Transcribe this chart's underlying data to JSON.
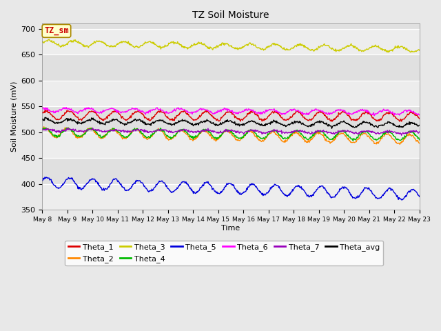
{
  "title": "TZ Soil Moisture",
  "xlabel": "Time",
  "ylabel": "Soil Moisture (mV)",
  "ylim": [
    350,
    710
  ],
  "yticks": [
    350,
    400,
    450,
    500,
    550,
    600,
    650,
    700
  ],
  "background_color": "#e8e8e8",
  "plot_bg_color": "#e0e0e0",
  "series": [
    {
      "name": "Theta_1",
      "color": "#dd0000",
      "base": 533,
      "trend": -0.18,
      "amp": 8,
      "freq": 1.1,
      "phase": 0.5,
      "seed": 1
    },
    {
      "name": "Theta_2",
      "color": "#ff8800",
      "base": 500,
      "trend": -0.9,
      "amp": 9,
      "freq": 1.1,
      "phase": 1.0,
      "seed": 2
    },
    {
      "name": "Theta_3",
      "color": "#cccc00",
      "base": 673,
      "trend": -0.85,
      "amp": 5,
      "freq": 1.0,
      "phase": 0.0,
      "seed": 3
    },
    {
      "name": "Theta_4",
      "color": "#00bb00",
      "base": 500,
      "trend": -0.5,
      "amp": 8,
      "freq": 1.1,
      "phase": 0.8,
      "seed": 4
    },
    {
      "name": "Theta_5",
      "color": "#0000dd",
      "base": 403,
      "trend": -1.6,
      "amp": 10,
      "freq": 1.1,
      "phase": 0.3,
      "seed": 5
    },
    {
      "name": "Theta_6",
      "color": "#ff00ff",
      "base": 543,
      "trend": -0.3,
      "amp": 4,
      "freq": 1.1,
      "phase": 1.5,
      "seed": 6
    },
    {
      "name": "Theta_7",
      "color": "#9900bb",
      "base": 504,
      "trend": -0.3,
      "amp": 2,
      "freq": 1.1,
      "phase": 0.2,
      "seed": 7
    },
    {
      "name": "Theta_avg",
      "color": "#000000",
      "base": 522,
      "trend": -0.55,
      "amp": 4,
      "freq": 1.1,
      "phase": 0.6,
      "seed": 8
    }
  ],
  "n_days": 15,
  "points_per_day": 48,
  "tz_label_color": "#cc0000",
  "tz_bg_color": "#ffffcc",
  "tz_edge_color": "#aa8800",
  "legend_ncol_row1": 6,
  "legend_ncol_row2": 2
}
